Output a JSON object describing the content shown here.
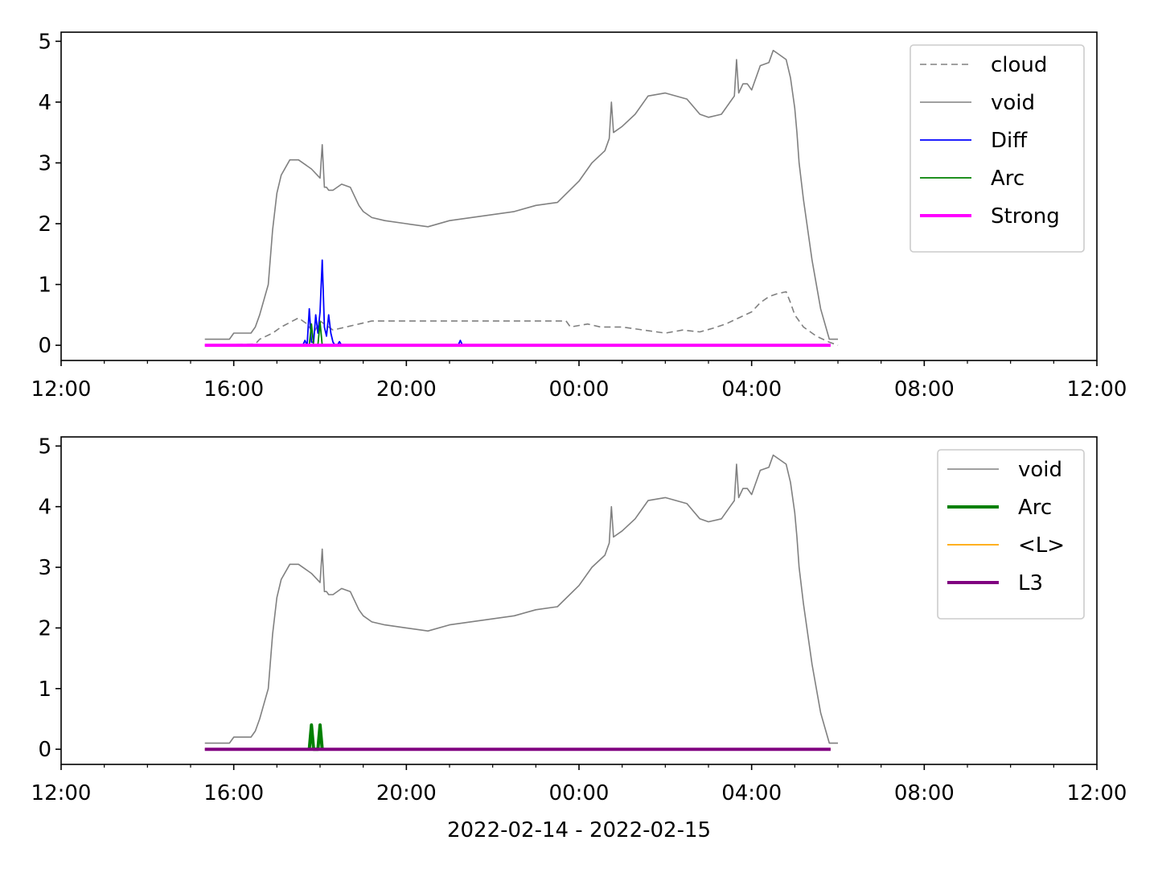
{
  "figure": {
    "xlabel": "2022-02-14 - 2022-02-15"
  },
  "chart_data": [
    {
      "type": "line",
      "panel": "top",
      "xlabel": "",
      "ylabel": "",
      "x_unit": "hours since 2022-02-14 00:00",
      "xlim": [
        12,
        36
      ],
      "ylim": [
        -0.25,
        5.15
      ],
      "xticks": [
        {
          "v": 12,
          "label": "12:00"
        },
        {
          "v": 16,
          "label": "16:00"
        },
        {
          "v": 20,
          "label": "20:00"
        },
        {
          "v": 24,
          "label": "00:00"
        },
        {
          "v": 28,
          "label": "04:00"
        },
        {
          "v": 32,
          "label": "08:00"
        },
        {
          "v": 36,
          "label": "12:00"
        }
      ],
      "yticks": [
        {
          "v": 0,
          "label": "0"
        },
        {
          "v": 1,
          "label": "1"
        },
        {
          "v": 2,
          "label": "2"
        },
        {
          "v": 3,
          "label": "3"
        },
        {
          "v": 4,
          "label": "4"
        },
        {
          "v": 5,
          "label": "5"
        }
      ],
      "legend_position": "top-right",
      "series": [
        {
          "name": "cloud",
          "color": "#808080",
          "style": "dashed",
          "width": 1.6,
          "x": [
            15.33,
            16.5,
            16.6,
            16.9,
            17.1,
            17.5,
            17.7,
            17.85,
            18.0,
            18.3,
            18.6,
            18.9,
            19.2,
            20.0,
            21.0,
            22.0,
            23.0,
            23.7,
            23.8,
            24.2,
            24.5,
            25.0,
            25.5,
            26.0,
            26.4,
            26.8,
            27.1,
            27.4,
            27.7,
            28.0,
            28.2,
            28.4,
            28.6,
            28.8,
            28.9,
            29.0,
            29.2,
            29.5,
            29.8,
            30.0
          ],
          "y": [
            0.0,
            0.02,
            0.1,
            0.2,
            0.3,
            0.45,
            0.35,
            0.2,
            0.4,
            0.25,
            0.3,
            0.35,
            0.4,
            0.4,
            0.4,
            0.4,
            0.4,
            0.4,
            0.3,
            0.35,
            0.3,
            0.3,
            0.25,
            0.2,
            0.25,
            0.22,
            0.28,
            0.35,
            0.45,
            0.55,
            0.7,
            0.8,
            0.85,
            0.88,
            0.7,
            0.5,
            0.3,
            0.15,
            0.05,
            0.0
          ]
        },
        {
          "name": "void",
          "color": "#808080",
          "style": "solid",
          "width": 1.6,
          "x": [
            15.33,
            15.9,
            16.0,
            16.4,
            16.5,
            16.6,
            16.8,
            16.9,
            17.0,
            17.1,
            17.3,
            17.5,
            17.8,
            18.0,
            18.05,
            18.1,
            18.15,
            18.2,
            18.3,
            18.5,
            18.7,
            18.9,
            19.0,
            19.2,
            19.5,
            20.0,
            20.5,
            21.0,
            22.0,
            22.5,
            23.0,
            23.5,
            24.0,
            24.3,
            24.6,
            24.7,
            24.75,
            24.8,
            25.0,
            25.3,
            25.6,
            26.0,
            26.5,
            26.8,
            27.0,
            27.3,
            27.5,
            27.6,
            27.65,
            27.7,
            27.8,
            27.9,
            28.0,
            28.2,
            28.4,
            28.5,
            28.6,
            28.8,
            28.9,
            29.0,
            29.05,
            29.1,
            29.2,
            29.4,
            29.6,
            29.8,
            30.0
          ],
          "y": [
            0.1,
            0.1,
            0.2,
            0.2,
            0.3,
            0.5,
            1.0,
            1.9,
            2.5,
            2.8,
            3.05,
            3.05,
            2.9,
            2.75,
            3.3,
            2.6,
            2.6,
            2.55,
            2.55,
            2.65,
            2.6,
            2.3,
            2.2,
            2.1,
            2.05,
            2.0,
            1.95,
            2.05,
            2.15,
            2.2,
            2.3,
            2.35,
            2.7,
            3.0,
            3.2,
            3.4,
            4.0,
            3.5,
            3.6,
            3.8,
            4.1,
            4.15,
            4.05,
            3.8,
            3.75,
            3.8,
            4.0,
            4.1,
            4.7,
            4.15,
            4.3,
            4.3,
            4.2,
            4.6,
            4.65,
            4.85,
            4.8,
            4.7,
            4.4,
            3.9,
            3.5,
            3.0,
            2.4,
            1.4,
            0.6,
            0.1,
            0.1
          ]
        },
        {
          "name": "Diff",
          "color": "#0000ff",
          "style": "solid",
          "width": 1.8,
          "x": [
            17.6,
            17.65,
            17.7,
            17.75,
            17.8,
            17.85,
            17.9,
            17.95,
            18.0,
            18.05,
            18.1,
            18.15,
            18.2,
            18.25,
            18.3,
            18.35,
            18.4,
            18.45,
            18.5,
            21.2,
            21.25,
            21.3
          ],
          "y": [
            0.0,
            0.08,
            0.0,
            0.6,
            0.05,
            0.05,
            0.5,
            0.2,
            0.55,
            1.4,
            0.3,
            0.15,
            0.5,
            0.2,
            0.05,
            0.0,
            0.0,
            0.06,
            0.0,
            0.0,
            0.08,
            0.0
          ]
        },
        {
          "name": "Arc",
          "color": "#008000",
          "style": "solid",
          "width": 1.8,
          "x": [
            17.75,
            17.8,
            17.85,
            17.95,
            18.0,
            18.05
          ],
          "y": [
            0.0,
            0.35,
            0.0,
            0.0,
            0.38,
            0.0
          ]
        },
        {
          "name": "Strong",
          "color": "#ff00ff",
          "style": "solid",
          "width": 4,
          "x": [
            15.33,
            29.83
          ],
          "y": [
            0.0,
            0.0
          ]
        }
      ]
    },
    {
      "type": "line",
      "panel": "bottom",
      "xlabel": "2022-02-14 - 2022-02-15",
      "ylabel": "",
      "x_unit": "hours since 2022-02-14 00:00",
      "xlim": [
        12,
        36
      ],
      "ylim": [
        -0.25,
        5.15
      ],
      "xticks": [
        {
          "v": 12,
          "label": "12:00"
        },
        {
          "v": 16,
          "label": "16:00"
        },
        {
          "v": 20,
          "label": "20:00"
        },
        {
          "v": 24,
          "label": "00:00"
        },
        {
          "v": 28,
          "label": "04:00"
        },
        {
          "v": 32,
          "label": "08:00"
        },
        {
          "v": 36,
          "label": "12:00"
        }
      ],
      "yticks": [
        {
          "v": 0,
          "label": "0"
        },
        {
          "v": 1,
          "label": "1"
        },
        {
          "v": 2,
          "label": "2"
        },
        {
          "v": 3,
          "label": "3"
        },
        {
          "v": 4,
          "label": "4"
        },
        {
          "v": 5,
          "label": "5"
        }
      ],
      "legend_position": "top-right",
      "series": [
        {
          "name": "void",
          "color": "#808080",
          "style": "solid",
          "width": 1.6,
          "x": [
            15.33,
            15.9,
            16.0,
            16.4,
            16.5,
            16.6,
            16.8,
            16.9,
            17.0,
            17.1,
            17.3,
            17.5,
            17.8,
            18.0,
            18.05,
            18.1,
            18.15,
            18.2,
            18.3,
            18.5,
            18.7,
            18.9,
            19.0,
            19.2,
            19.5,
            20.0,
            20.5,
            21.0,
            22.0,
            22.5,
            23.0,
            23.5,
            24.0,
            24.3,
            24.6,
            24.7,
            24.75,
            24.8,
            25.0,
            25.3,
            25.6,
            26.0,
            26.5,
            26.8,
            27.0,
            27.3,
            27.5,
            27.6,
            27.65,
            27.7,
            27.8,
            27.9,
            28.0,
            28.2,
            28.4,
            28.5,
            28.6,
            28.8,
            28.9,
            29.0,
            29.05,
            29.1,
            29.2,
            29.4,
            29.6,
            29.8,
            30.0
          ],
          "y": [
            0.1,
            0.1,
            0.2,
            0.2,
            0.3,
            0.5,
            1.0,
            1.9,
            2.5,
            2.8,
            3.05,
            3.05,
            2.9,
            2.75,
            3.3,
            2.6,
            2.6,
            2.55,
            2.55,
            2.65,
            2.6,
            2.3,
            2.2,
            2.1,
            2.05,
            2.0,
            1.95,
            2.05,
            2.15,
            2.2,
            2.3,
            2.35,
            2.7,
            3.0,
            3.2,
            3.4,
            4.0,
            3.5,
            3.6,
            3.8,
            4.1,
            4.15,
            4.05,
            3.8,
            3.75,
            3.8,
            4.0,
            4.1,
            4.7,
            4.15,
            4.3,
            4.3,
            4.2,
            4.6,
            4.65,
            4.85,
            4.8,
            4.7,
            4.4,
            3.9,
            3.5,
            3.0,
            2.4,
            1.4,
            0.6,
            0.1,
            0.1
          ]
        },
        {
          "name": "Arc",
          "color": "#008000",
          "style": "solid",
          "width": 4,
          "x": [
            17.75,
            17.8,
            17.85,
            17.95,
            18.0,
            18.05
          ],
          "y": [
            0.0,
            0.4,
            0.0,
            0.0,
            0.4,
            0.0
          ]
        },
        {
          "name": "<L>",
          "color": "#ffa500",
          "style": "solid",
          "width": 1.8,
          "x": [
            15.33,
            29.83
          ],
          "y": [
            0.0,
            0.0
          ]
        },
        {
          "name": "L3",
          "color": "#800080",
          "style": "solid",
          "width": 4,
          "x": [
            15.33,
            29.83
          ],
          "y": [
            0.0,
            0.0
          ]
        }
      ]
    }
  ]
}
